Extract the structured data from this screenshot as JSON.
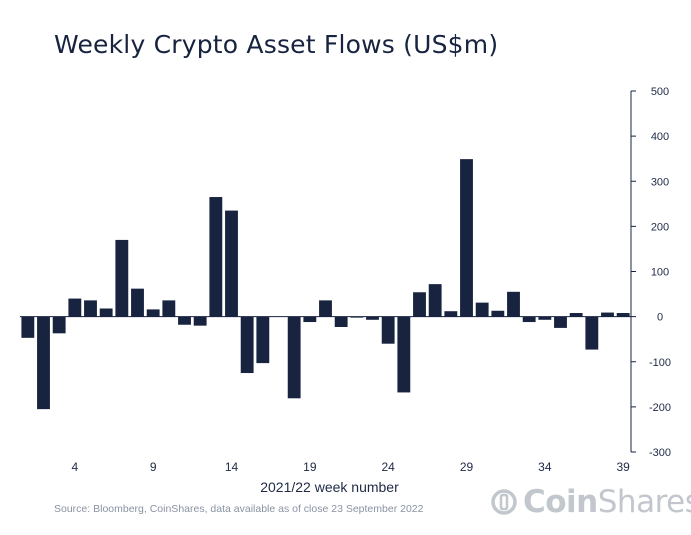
{
  "chart_data": {
    "type": "bar",
    "title": "Weekly Crypto Asset Flows (US$m)",
    "xlabel": "2021/22 week number",
    "ylabel": "",
    "ylim": [
      -300,
      500
    ],
    "yticks": [
      500,
      400,
      300,
      200,
      100,
      0,
      -100,
      -200,
      -300
    ],
    "xtick_labels": [
      "4",
      "9",
      "14",
      "19",
      "24",
      "29",
      "34",
      "39"
    ],
    "bar_color": "#17233f",
    "weeks": [
      1,
      2,
      3,
      4,
      5,
      6,
      7,
      8,
      9,
      10,
      11,
      12,
      13,
      14,
      15,
      16,
      17,
      18,
      19,
      20,
      21,
      22,
      23,
      24,
      25,
      26,
      27,
      28,
      29,
      30,
      31,
      32,
      33,
      34,
      35,
      36,
      37,
      38,
      39
    ],
    "values": [
      -47,
      -205,
      -37,
      40,
      36,
      18,
      170,
      62,
      16,
      36,
      -18,
      -20,
      265,
      235,
      -125,
      -103,
      0,
      -181,
      -12,
      36,
      -23,
      -2,
      -7,
      -60,
      -168,
      54,
      72,
      12,
      349,
      31,
      13,
      55,
      -12,
      -7,
      -25,
      8,
      -73,
      9,
      8
    ],
    "grid": false,
    "y_axis_position": "right"
  },
  "source": "Source: Bloomberg, CoinShares, data available as of close 23 September 2022",
  "brand": {
    "bold": "Coin",
    "regular": "Shares"
  }
}
